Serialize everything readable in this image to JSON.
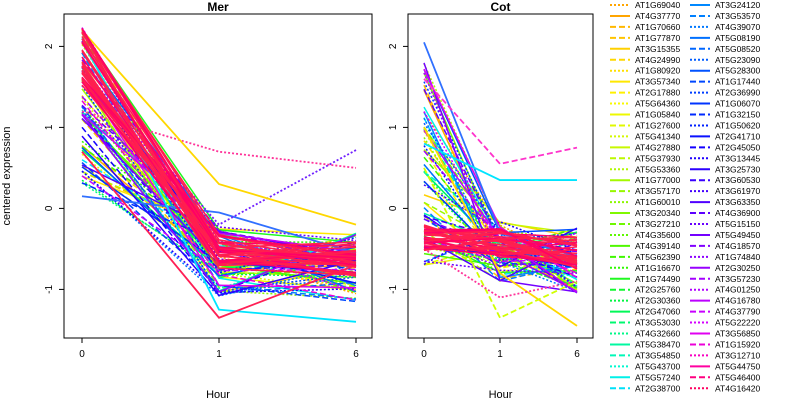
{
  "chart_data": [
    {
      "type": "line",
      "title": "Mer",
      "xlabel": "Hour",
      "ylabel": "centered expression",
      "x_categories": [
        "0",
        "1",
        "6"
      ],
      "yticks": [
        -1,
        0,
        1,
        2
      ],
      "ylim": [
        -1.6,
        2.4
      ],
      "grid": false,
      "series_count": 68,
      "notable_series": [
        {
          "color": "#3070ff",
          "style": "solid",
          "values": [
            0.15,
            -0.05,
            -0.55
          ]
        },
        {
          "color": "#7020ff",
          "style": "dotted",
          "values": [
            1.7,
            -0.2,
            0.72
          ]
        },
        {
          "color": "#ff3399",
          "style": "dotted",
          "values": [
            1.2,
            0.7,
            0.5
          ]
        },
        {
          "color": "#ffd700",
          "style": "solid",
          "values": [
            2.2,
            0.3,
            -0.2
          ]
        },
        {
          "color": "#00e5ff",
          "style": "solid",
          "values": [
            2.1,
            -1.25,
            -1.4
          ]
        },
        {
          "color": "#ff1f55",
          "style": "solid",
          "values": [
            0.7,
            -1.35,
            -0.7
          ]
        }
      ]
    },
    {
      "type": "line",
      "title": "Cot",
      "xlabel": "Hour",
      "x_categories": [
        "0",
        "1",
        "6"
      ],
      "yticks": [
        -1,
        0,
        1,
        2
      ],
      "ylim": [
        -1.6,
        2.4
      ],
      "grid": false,
      "series_count": 68,
      "notable_series": [
        {
          "color": "#3070ff",
          "style": "solid",
          "values": [
            2.05,
            -0.3,
            -0.6
          ]
        },
        {
          "color": "#ffd700",
          "style": "solid",
          "values": [
            1.0,
            -0.8,
            -1.45
          ]
        },
        {
          "color": "#00e5ff",
          "style": "solid",
          "values": [
            0.8,
            0.35,
            0.35
          ]
        },
        {
          "color": "#ff33cc",
          "style": "dashed",
          "values": [
            1.6,
            0.55,
            0.75
          ]
        },
        {
          "color": "#d0ff00",
          "style": "dashed",
          "values": [
            0.5,
            -1.35,
            -0.9
          ]
        },
        {
          "color": "#ff3399",
          "style": "dotted",
          "values": [
            -0.5,
            -1.1,
            -0.9
          ]
        }
      ]
    }
  ],
  "legend": {
    "placement": "right",
    "columns": [
      [
        {
          "label": "AT1G69040",
          "color": "#ffa500",
          "dash": "dotted"
        },
        {
          "label": "AT4G37770",
          "color": "#ffa500",
          "dash": "solid"
        },
        {
          "label": "AT1G70660",
          "color": "#ffb800",
          "dash": "dashed"
        },
        {
          "label": "AT1G77870",
          "color": "#ffc400",
          "dash": "dashed"
        },
        {
          "label": "AT3G15355",
          "color": "#ffd000",
          "dash": "solid"
        },
        {
          "label": "AT4G24990",
          "color": "#ffd800",
          "dash": "dashed"
        },
        {
          "label": "AT1G80920",
          "color": "#ffe000",
          "dash": "dotted"
        },
        {
          "label": "AT3G57340",
          "color": "#ffe800",
          "dash": "solid"
        },
        {
          "label": "AT2G17880",
          "color": "#fff000",
          "dash": "dashed"
        },
        {
          "label": "AT5G64360",
          "color": "#f8f800",
          "dash": "dotted"
        },
        {
          "label": "AT1G05840",
          "color": "#eef800",
          "dash": "solid"
        },
        {
          "label": "AT1G27600",
          "color": "#e0f800",
          "dash": "dashed"
        },
        {
          "label": "AT5G41340",
          "color": "#d4f800",
          "dash": "dotted"
        },
        {
          "label": "AT4G27880",
          "color": "#c8f800",
          "dash": "solid"
        },
        {
          "label": "AT5G37930",
          "color": "#bcf800",
          "dash": "dashed"
        },
        {
          "label": "AT5G53360",
          "color": "#b0f800",
          "dash": "dotted"
        },
        {
          "label": "AT1G77000",
          "color": "#a4f800",
          "dash": "solid"
        },
        {
          "label": "AT3G57170",
          "color": "#98f800",
          "dash": "dashed"
        },
        {
          "label": "AT1G60010",
          "color": "#8cf800",
          "dash": "dotted"
        },
        {
          "label": "AT3G20340",
          "color": "#80f800",
          "dash": "solid"
        },
        {
          "label": "AT3G27210",
          "color": "#70f800",
          "dash": "dashed"
        },
        {
          "label": "AT4G35600",
          "color": "#60f800",
          "dash": "dotted"
        },
        {
          "label": "AT4G39140",
          "color": "#50f800",
          "dash": "solid"
        },
        {
          "label": "AT5G62390",
          "color": "#40f800",
          "dash": "dashed"
        },
        {
          "label": "AT1G16670",
          "color": "#30f800",
          "dash": "dotted"
        },
        {
          "label": "AT1G74490",
          "color": "#20f820",
          "dash": "solid"
        },
        {
          "label": "AT2G25760",
          "color": "#10f830",
          "dash": "dashed"
        },
        {
          "label": "AT2G30360",
          "color": "#00f840",
          "dash": "dotted"
        },
        {
          "label": "AT2G47060",
          "color": "#00f858",
          "dash": "solid"
        },
        {
          "label": "AT3G53030",
          "color": "#00f870",
          "dash": "dashed"
        },
        {
          "label": "AT4G32660",
          "color": "#00f888",
          "dash": "dotted"
        },
        {
          "label": "AT5G38470",
          "color": "#00f8a0",
          "dash": "solid"
        },
        {
          "label": "AT3G54850",
          "color": "#00f8b8",
          "dash": "dashed"
        },
        {
          "label": "AT5G43700",
          "color": "#00f8d0",
          "dash": "dotted"
        },
        {
          "label": "AT5G57240",
          "color": "#00f0e8",
          "dash": "solid"
        },
        {
          "label": "AT2G38700",
          "color": "#00e0f8",
          "dash": "dashed"
        }
      ],
      [
        {
          "label": "AT3G24120",
          "color": "#0088ff",
          "dash": "solid"
        },
        {
          "label": "AT3G53570",
          "color": "#0080ff",
          "dash": "dashed"
        },
        {
          "label": "AT4G39070",
          "color": "#0078ff",
          "dash": "dotted"
        },
        {
          "label": "AT5G08190",
          "color": "#0070ff",
          "dash": "solid"
        },
        {
          "label": "AT5G08520",
          "color": "#0066ff",
          "dash": "dashed"
        },
        {
          "label": "AT5G23090",
          "color": "#005cff",
          "dash": "dotted"
        },
        {
          "label": "AT5G28300",
          "color": "#0052ff",
          "dash": "solid"
        },
        {
          "label": "AT1G17440",
          "color": "#0048ff",
          "dash": "dashed"
        },
        {
          "label": "AT2G36990",
          "color": "#003eff",
          "dash": "dotted"
        },
        {
          "label": "AT1G06070",
          "color": "#0034ff",
          "dash": "solid"
        },
        {
          "label": "AT1G32150",
          "color": "#002aff",
          "dash": "dashed"
        },
        {
          "label": "AT1G50620",
          "color": "#0020ff",
          "dash": "dotted"
        },
        {
          "label": "AT2G41710",
          "color": "#0a10ff",
          "dash": "solid"
        },
        {
          "label": "AT2G45050",
          "color": "#1400ff",
          "dash": "dashed"
        },
        {
          "label": "AT3G13445",
          "color": "#2000ff",
          "dash": "dotted"
        },
        {
          "label": "AT3G25730",
          "color": "#2c00ff",
          "dash": "solid"
        },
        {
          "label": "AT3G60530",
          "color": "#3800ff",
          "dash": "dashed"
        },
        {
          "label": "AT3G61970",
          "color": "#4400ff",
          "dash": "dotted"
        },
        {
          "label": "AT3G63350",
          "color": "#5000ff",
          "dash": "solid"
        },
        {
          "label": "AT4G36900",
          "color": "#5c00ff",
          "dash": "dashed"
        },
        {
          "label": "AT5G15150",
          "color": "#6800ff",
          "dash": "dotted"
        },
        {
          "label": "AT5G49450",
          "color": "#7400ff",
          "dash": "solid"
        },
        {
          "label": "AT4G18570",
          "color": "#8000ff",
          "dash": "dashed"
        },
        {
          "label": "AT1G74840",
          "color": "#8c00ff",
          "dash": "dotted"
        },
        {
          "label": "AT2G30250",
          "color": "#9800ff",
          "dash": "solid"
        },
        {
          "label": "AT3G57230",
          "color": "#a400ff",
          "dash": "dashed"
        },
        {
          "label": "AT4G01250",
          "color": "#b000ff",
          "dash": "dotted"
        },
        {
          "label": "AT4G16780",
          "color": "#bc00ff",
          "dash": "solid"
        },
        {
          "label": "AT4G37790",
          "color": "#c800ff",
          "dash": "dashed"
        },
        {
          "label": "AT5G22220",
          "color": "#d400ff",
          "dash": "dotted"
        },
        {
          "label": "AT3G56850",
          "color": "#e000f0",
          "dash": "solid"
        },
        {
          "label": "AT1G15920",
          "color": "#ec00d8",
          "dash": "dashed"
        },
        {
          "label": "AT3G12710",
          "color": "#f800c0",
          "dash": "dotted"
        },
        {
          "label": "AT5G44750",
          "color": "#ff00a0",
          "dash": "solid"
        },
        {
          "label": "AT5G46400",
          "color": "#ff0080",
          "dash": "dashed"
        },
        {
          "label": "AT4G16420",
          "color": "#ff0060",
          "dash": "dotted"
        }
      ]
    ]
  }
}
